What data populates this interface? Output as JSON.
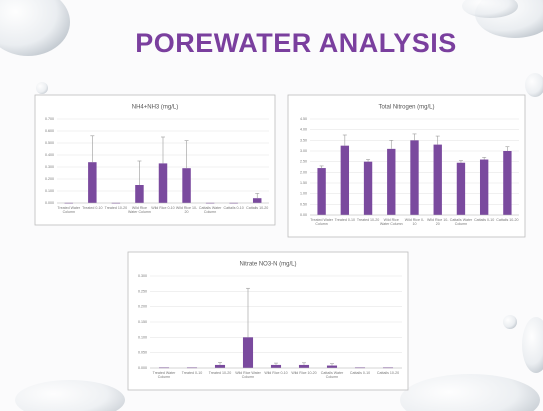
{
  "slide": {
    "title": "POREWATER ANALYSIS"
  },
  "chart_data": [
    {
      "type": "bar",
      "title": "NH4+NH3 (mg/L)",
      "color": "#7a4a9e",
      "error_color": "#9a9a9a",
      "grid": true,
      "categories": [
        "Treated Water Column",
        "Treated 0-10",
        "Treated 10-20",
        "Wild Rice Water Column",
        "Wild Rice 0-10",
        "Wild Rice 10-20",
        "Cattails Water Column",
        "Cattails 0-10",
        "Cattails 10-20"
      ],
      "values": [
        0.002,
        0.34,
        0.002,
        0.15,
        0.33,
        0.29,
        0.002,
        0.002,
        0.04
      ],
      "errors": [
        0,
        0.22,
        0,
        0.2,
        0.22,
        0.23,
        0,
        0,
        0.04
      ],
      "ylim": [
        0,
        0.7
      ],
      "yticks": [
        {
          "value": 0,
          "label": "0.000"
        },
        {
          "value": 0.1,
          "label": "0.100"
        },
        {
          "value": 0.2,
          "label": "0.200"
        },
        {
          "value": 0.3,
          "label": "0.300"
        },
        {
          "value": 0.4,
          "label": "0.400"
        },
        {
          "value": 0.5,
          "label": "0.500"
        },
        {
          "value": 0.6,
          "label": "0.600"
        },
        {
          "value": 0.7,
          "label": "0.700"
        }
      ]
    },
    {
      "type": "bar",
      "title": "Total Nitrogen (mg/L)",
      "color": "#7a4a9e",
      "error_color": "#9a9a9a",
      "grid": true,
      "categories": [
        "Treated Water Column",
        "Treated 0-10",
        "Treated 10-20",
        "Wild Rice Water Column",
        "Wild Rice 0-10",
        "Wild Rice 10-20",
        "Cattails Water Column",
        "Cattails 0-10",
        "Cattails 10-20"
      ],
      "values": [
        2.2,
        3.25,
        2.5,
        3.1,
        3.5,
        3.3,
        2.45,
        2.6,
        3.0
      ],
      "errors": [
        0.1,
        0.5,
        0.1,
        0.4,
        0.3,
        0.4,
        0.1,
        0.1,
        0.2
      ],
      "ylim": [
        0,
        4.5
      ],
      "yticks": [
        {
          "value": 0,
          "label": "0.00"
        },
        {
          "value": 0.5,
          "label": "0.50"
        },
        {
          "value": 1,
          "label": "1.00"
        },
        {
          "value": 1.5,
          "label": "1.50"
        },
        {
          "value": 2,
          "label": "2.00"
        },
        {
          "value": 2.5,
          "label": "2.50"
        },
        {
          "value": 3,
          "label": "3.00"
        },
        {
          "value": 3.5,
          "label": "3.50"
        },
        {
          "value": 4,
          "label": "4.00"
        },
        {
          "value": 4.5,
          "label": "4.50"
        }
      ]
    },
    {
      "type": "bar",
      "title": "Nitrate NO3-N (mg/L)",
      "color": "#7a4a9e",
      "error_color": "#9a9a9a",
      "grid": true,
      "categories": [
        "Treated Water Column",
        "Treated 0-10",
        "Treated 10-20",
        "Wild Rice Water Column",
        "Wild Rice 0-10",
        "Wild Rice 10-20",
        "Cattails Water Column",
        "Cattails 0-10",
        "Cattails 10-20"
      ],
      "values": [
        0.002,
        0.002,
        0.01,
        0.1,
        0.01,
        0.01,
        0.008,
        0.002,
        0.002
      ],
      "errors": [
        0,
        0,
        0.008,
        0.16,
        0.006,
        0.007,
        0.006,
        0,
        0
      ],
      "ylim": [
        0,
        0.3
      ],
      "yticks": [
        {
          "value": 0,
          "label": "0.000"
        },
        {
          "value": 0.05,
          "label": "0.050"
        },
        {
          "value": 0.1,
          "label": "0.100"
        },
        {
          "value": 0.15,
          "label": "0.150"
        },
        {
          "value": 0.2,
          "label": "0.200"
        },
        {
          "value": 0.25,
          "label": "0.250"
        },
        {
          "value": 0.3,
          "label": "0.300"
        }
      ]
    }
  ]
}
